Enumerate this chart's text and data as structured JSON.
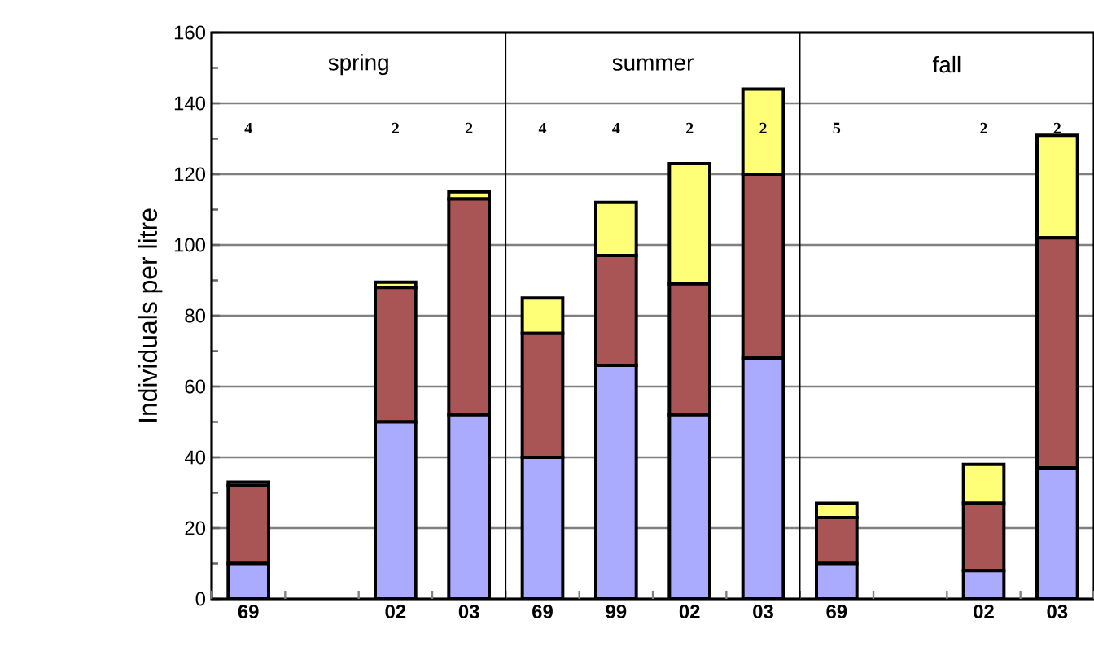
{
  "chart_data": {
    "type": "bar",
    "stacked": true,
    "ylabel": "Individuals per litre",
    "categories": [
      "69",
      null,
      "02",
      "03",
      "69",
      "99",
      "02",
      "03",
      "69",
      null,
      "02",
      "03"
    ],
    "series": [
      {
        "color": "#aaaaff",
        "values": [
          10,
          null,
          50,
          52,
          40,
          66,
          52,
          68,
          10,
          null,
          8,
          37
        ]
      },
      {
        "color": "#aa5555",
        "values": [
          22,
          null,
          38,
          61,
          35,
          31,
          37,
          52,
          13,
          null,
          19,
          65
        ]
      },
      {
        "color": "#ffff77",
        "values": [
          1,
          null,
          1.5,
          2,
          10,
          15,
          34,
          24,
          4,
          null,
          11,
          29
        ]
      }
    ],
    "ylim": [
      0,
      160
    ],
    "yticks": [
      0,
      20,
      40,
      60,
      80,
      100,
      120,
      140,
      160
    ],
    "grid": "y",
    "annotations": [
      "spring",
      "summer",
      "fall",
      "4",
      "2",
      "2",
      "4",
      "4",
      "2",
      "2",
      "5",
      "2",
      "2"
    ]
  }
}
